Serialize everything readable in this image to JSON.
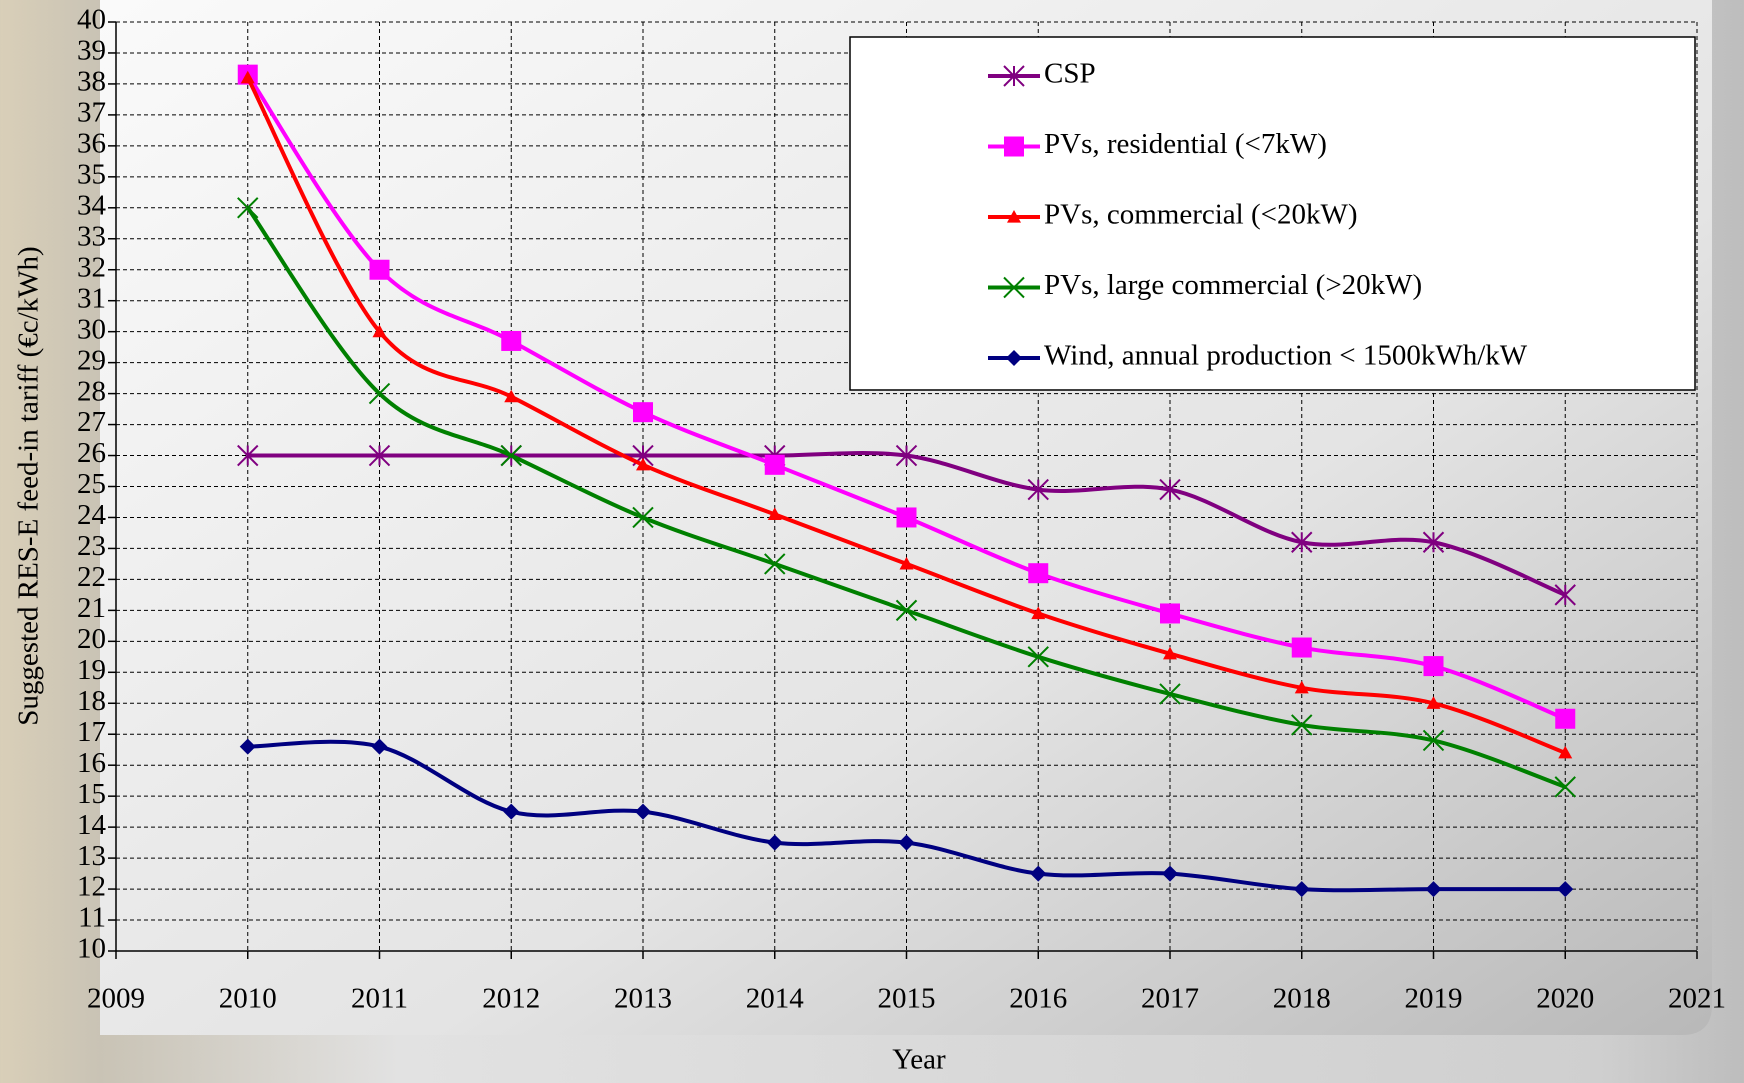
{
  "chart_data": {
    "type": "line",
    "x": [
      2010,
      2011,
      2012,
      2013,
      2014,
      2015,
      2016,
      2017,
      2018,
      2019,
      2020
    ],
    "series": [
      {
        "name": "CSP",
        "color": "#800080",
        "marker": "star",
        "values": [
          26,
          26,
          26,
          26,
          26,
          26,
          24.9,
          24.9,
          23.2,
          23.2,
          21.5
        ]
      },
      {
        "name": "PVs, residential (<7kW)",
        "color": "#ff00ff",
        "marker": "square",
        "values": [
          38.3,
          32,
          29.7,
          27.4,
          25.7,
          24,
          22.2,
          20.9,
          19.8,
          19.2,
          17.5
        ]
      },
      {
        "name": "PVs, commercial (<20kW)",
        "color": "#ff0000",
        "marker": "triangle",
        "values": [
          38.2,
          30,
          27.9,
          25.7,
          24.1,
          22.5,
          20.9,
          19.6,
          18.5,
          18,
          16.4
        ]
      },
      {
        "name": "PVs, large commercial (>20kW)",
        "color": "#008000",
        "marker": "x",
        "values": [
          34,
          28,
          26,
          24,
          22.5,
          21,
          19.5,
          18.3,
          17.3,
          16.8,
          15.3
        ]
      },
      {
        "name": "Wind, annual production < 1500kWh/kW",
        "color": "#000080",
        "marker": "diamond",
        "values": [
          16.6,
          16.6,
          14.5,
          14.5,
          13.5,
          13.5,
          12.5,
          12.5,
          12,
          12,
          12
        ]
      }
    ],
    "xlabel": "Year",
    "ylabel": "Suggested RES-E feed-in tariff (€c/kWh)",
    "xlim": [
      2009,
      2021
    ],
    "xticks": [
      2009,
      2010,
      2011,
      2012,
      2013,
      2014,
      2015,
      2016,
      2017,
      2018,
      2019,
      2020,
      2021
    ],
    "ylim": [
      10,
      40
    ],
    "yticks": [
      10,
      11,
      12,
      13,
      14,
      15,
      16,
      17,
      18,
      19,
      20,
      21,
      22,
      23,
      24,
      25,
      26,
      27,
      28,
      29,
      30,
      31,
      32,
      33,
      34,
      35,
      36,
      37,
      38,
      39,
      40
    ],
    "grid": true,
    "smooth": true,
    "legend": "upper right"
  }
}
